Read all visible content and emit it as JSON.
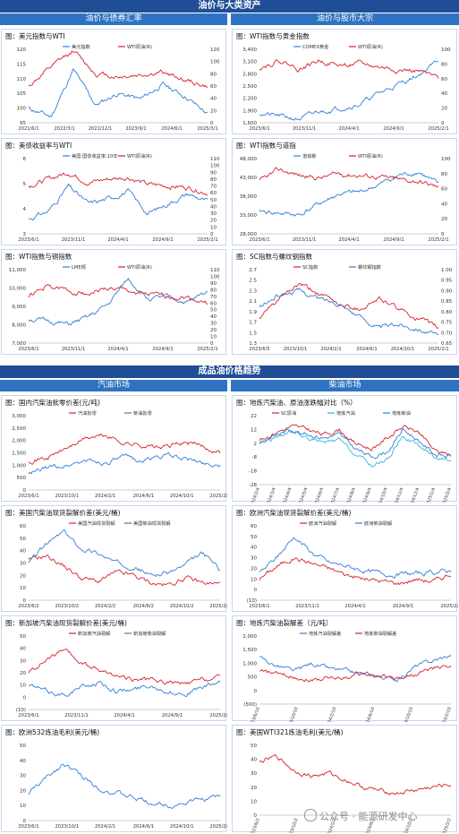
{
  "sections": [
    {
      "title": "油价与大类资产",
      "left": "油价与债券汇率",
      "right": "油价与股市大宗"
    },
    {
      "title": "成品油价格趋势",
      "left": "汽油市场",
      "right": "柴油市场"
    }
  ],
  "watermark": "公众号 · 能源研发中心",
  "colors": {
    "red": "#d6202b",
    "blue": "#2f7fd6",
    "cyan": "#31b7dd",
    "banner": "#1f4e96",
    "subheader": "#2e73c2"
  },
  "panels": [
    {
      "title": "图：美元指数与WTI",
      "legend_pos": "top",
      "series": [
        {
          "name": "美元指数",
          "axis": "left",
          "color": "#2f7fd6",
          "seed": 11,
          "kp": [
            100,
            97,
            113,
            101,
            105,
            103,
            108,
            104,
            98
          ]
        },
        {
          "name": "WTI原油(R)",
          "axis": "right",
          "color": "#d6202b",
          "seed": 12,
          "kp": [
            60,
            90,
            118,
            80,
            75,
            78,
            82,
            70,
            58
          ]
        }
      ],
      "x_ticks": [
        "2021/6/1",
        "2022/3/1",
        "2022/12/1",
        "2023/9/1",
        "2024/6/1",
        "2025/3/1"
      ],
      "yl": [
        95,
        120
      ],
      "yl_ticks": [
        "95",
        "100",
        "105",
        "110",
        "115",
        "120"
      ],
      "yr": [
        0,
        120
      ],
      "yr_ticks": [
        "0",
        "20",
        "40",
        "60",
        "80",
        "100",
        "120"
      ]
    },
    {
      "title": "图：WTI指数与黄金指数",
      "legend_pos": "top",
      "series": [
        {
          "name": "COMEX黄金",
          "axis": "left",
          "color": "#2f7fd6",
          "seed": 21,
          "kp": [
            1850,
            1780,
            1700,
            1900,
            2000,
            2100,
            2400,
            2650,
            2900,
            3300
          ]
        },
        {
          "name": "WTI原油(R)",
          "axis": "right",
          "color": "#d6202b",
          "seed": 22,
          "kp": [
            75,
            85,
            73,
            85,
            78,
            80,
            76,
            72,
            70,
            60
          ]
        }
      ],
      "x_ticks": [
        "2023/6/1",
        "2023/11/1",
        "2024/4/1",
        "2024/9/1",
        "2025/2/1"
      ],
      "yl": [
        1600,
        3600
      ],
      "yl_ticks": [
        "1,600",
        "1,900",
        "2,200",
        "2,500",
        "2,800",
        "3,100",
        "3,400"
      ],
      "yr": [
        0,
        100
      ],
      "yr_ticks": [
        "0",
        "20",
        "40",
        "60",
        "80",
        "100"
      ]
    },
    {
      "title": "图：美债收益率与WTI",
      "legend_pos": "top",
      "series": [
        {
          "name": "美国:国债收益率:10年",
          "axis": "left",
          "color": "#2f7fd6",
          "seed": 31,
          "kp": [
            3.6,
            3.9,
            4.9,
            4.2,
            4.4,
            4.7,
            3.8,
            4.2,
            4.6,
            4.3
          ]
        },
        {
          "name": "WTI原油(R)",
          "axis": "right",
          "color": "#d6202b",
          "seed": 32,
          "kp": [
            70,
            80,
            90,
            75,
            80,
            83,
            72,
            70,
            68,
            60
          ]
        }
      ],
      "x_ticks": [
        "2023/6/1",
        "2023/11/1",
        "2024/4/1",
        "2024/9/1",
        "2025/2/1"
      ],
      "yl": [
        3,
        6
      ],
      "yl_ticks": [
        "3",
        "4",
        "5",
        "6"
      ],
      "yr": [
        0,
        110
      ],
      "yr_ticks": [
        "0",
        "10",
        "20",
        "30",
        "40",
        "50",
        "60",
        "70",
        "80",
        "90",
        "100",
        "110"
      ]
    },
    {
      "title": "图：WTI指数与道指",
      "legend_pos": "top",
      "series": [
        {
          "name": "道琼斯",
          "axis": "left",
          "color": "#2f7fd6",
          "seed": 41,
          "kp": [
            34000,
            33500,
            33000,
            36000,
            38500,
            39000,
            41000,
            43500,
            44500,
            41000
          ]
        },
        {
          "name": "WTI原油(R)",
          "axis": "right",
          "color": "#d6202b",
          "seed": 42,
          "kp": [
            70,
            85,
            78,
            74,
            80,
            78,
            76,
            72,
            70,
            62
          ]
        }
      ],
      "x_ticks": [
        "2023/6/1",
        "2023/11/1",
        "2024/4/1",
        "2024/9/1",
        "2025/2/1"
      ],
      "yl": [
        28000,
        48000
      ],
      "yl_ticks": [
        "28,000",
        "33,000",
        "38,000",
        "43,000",
        "48,000"
      ],
      "yr": [
        0,
        100
      ],
      "yr_ticks": [
        "0",
        "20",
        "40",
        "60",
        "80",
        "100"
      ]
    },
    {
      "title": "图：WTI指数与铜指数",
      "legend_pos": "top",
      "series": [
        {
          "name": "LME铜",
          "axis": "left",
          "color": "#2f7fd6",
          "seed": 51,
          "kp": [
            8300,
            8200,
            8000,
            8400,
            9100,
            10500,
            9400,
            9500,
            9200,
            9800
          ]
        },
        {
          "name": "WTI原油(R)",
          "axis": "right",
          "color": "#d6202b",
          "seed": 52,
          "kp": [
            70,
            85,
            78,
            74,
            82,
            78,
            72,
            70,
            68,
            60
          ]
        }
      ],
      "x_ticks": [
        "2023/6/1",
        "2023/11/1",
        "2024/4/1",
        "2024/9/1",
        "2025/2/1"
      ],
      "yl": [
        7000,
        11000
      ],
      "yl_ticks": [
        "7,000",
        "8,000",
        "9,000",
        "10,000",
        "11,000"
      ],
      "yr": [
        0,
        110
      ],
      "yr_ticks": [
        "0",
        "10",
        "20",
        "30",
        "40",
        "50",
        "60",
        "70",
        "80",
        "90",
        "100",
        "110"
      ]
    },
    {
      "title": "图：SC指数与螺纹钢指数",
      "legend_pos": "top",
      "series": [
        {
          "name": "SC指数",
          "axis": "left",
          "color": "#d6202b",
          "seed": 61,
          "kp": [
            1.8,
            2.2,
            2.5,
            2.3,
            2.1,
            2.0,
            2.2,
            2.0,
            1.8,
            1.6
          ]
        },
        {
          "name": "螺纹钢指数",
          "axis": "right",
          "color": "#2f7fd6",
          "seed": 62,
          "kp": [
            0.82,
            0.88,
            0.9,
            0.86,
            0.84,
            0.78,
            0.72,
            0.74,
            0.72,
            0.68
          ]
        }
      ],
      "x_ticks": [
        "2023/6/5",
        "2023/10/1",
        "2024/2/1",
        "2024/6/1",
        "2024/10/1",
        "2025/2/1"
      ],
      "yl": [
        1.3,
        2.8
      ],
      "yl_ticks": [
        "1.3",
        "1.5",
        "1.7",
        "1.9",
        "2.1",
        "2.3",
        "2.5",
        "2.7"
      ],
      "yr": [
        0.65,
        1.0
      ],
      "yr_ticks": [
        "0.65",
        "0.70",
        "0.75",
        "0.80",
        "0.85",
        "0.90",
        "0.95",
        "1.00"
      ]
    },
    {
      "title": "图：国内汽柴油批零价差(元/吨)",
      "legend_pos": "top",
      "series": [
        {
          "name": "汽油批零",
          "axis": "left",
          "color": "#d6202b",
          "seed": 71,
          "kp": [
            1200,
            1300,
            1700,
            2100,
            2200,
            1900,
            1800,
            1700,
            1900,
            1800,
            1500
          ]
        },
        {
          "name": "柴油批零",
          "axis": "left",
          "color": "#2f7fd6",
          "seed": 72,
          "kp": [
            600,
            900,
            1000,
            1200,
            1100,
            1300,
            1200,
            1400,
            1300,
            1100,
            1000
          ]
        }
      ],
      "x_ticks": [
        "2023/6/1",
        "2023/10/1",
        "2024/2/1",
        "2024/6/1",
        "2024/10/1",
        "2025/2/1"
      ],
      "yl": [
        0,
        3000
      ],
      "yl_ticks": [
        "0",
        "500",
        "1,000",
        "1,500",
        "2,000",
        "2,500",
        "3,000"
      ]
    },
    {
      "title": "图：地炼汽柴油、原油涨跌幅对比（%）",
      "legend_pos": "top",
      "series": [
        {
          "name": "SC原油",
          "axis": "left",
          "color": "#d6202b",
          "seed": 81,
          "kp": [
            4,
            10,
            14,
            12,
            8,
            12,
            2,
            -2,
            6,
            14,
            10,
            -4,
            -6
          ]
        },
        {
          "name": "地炼汽油",
          "axis": "left",
          "color": "#31b7dd",
          "seed": 82,
          "kp": [
            2,
            6,
            10,
            6,
            2,
            4,
            -6,
            -14,
            -10,
            8,
            0,
            -8,
            -10
          ]
        },
        {
          "name": "地炼柴油",
          "axis": "left",
          "color": "#2f7fd6",
          "seed": 83,
          "kp": [
            3,
            8,
            12,
            9,
            6,
            8,
            -2,
            -8,
            -4,
            12,
            4,
            -6,
            -8
          ]
        }
      ],
      "x_ticks": [
        "2024/2/4",
        "2024/3/4",
        "2024/4/4",
        "2024/5/4",
        "2024/6/4",
        "2024/7/4",
        "2024/8/4",
        "2024/9/4",
        "2024/10/4",
        "2024/11/4",
        "2024/12/4",
        "2025/1/4",
        "2025/2/4"
      ],
      "x_rotate": true,
      "yl": [
        -28,
        22
      ],
      "yl_ticks": [
        "-28",
        "-18",
        "-8",
        "2",
        "12",
        "22"
      ]
    },
    {
      "title": "图：美国汽柴油现货裂解价差(美元/桶)",
      "legend_pos": "top",
      "series": [
        {
          "name": "美国汽油现货裂解",
          "axis": "left",
          "color": "#d6202b",
          "seed": 91,
          "kp": [
            32,
            36,
            28,
            18,
            15,
            22,
            20,
            14,
            12,
            18,
            14,
            13
          ]
        },
        {
          "name": "美国柴油现货裂解",
          "axis": "left",
          "color": "#2f7fd6",
          "seed": 92,
          "kp": [
            30,
            45,
            55,
            42,
            38,
            30,
            28,
            20,
            22,
            28,
            38,
            25
          ]
        }
      ],
      "x_ticks": [
        "2023/6/2",
        "2023/10/2",
        "2024/2/2",
        "2024/6/2",
        "2024/10/2",
        "2025/2/2"
      ],
      "yl": [
        0,
        60
      ],
      "yl_ticks": [
        "0",
        "10",
        "20",
        "30",
        "40",
        "50",
        "60"
      ]
    },
    {
      "title": "图：欧洲汽柴油现货裂解价差(美元/桶)",
      "legend_pos": "top",
      "series": [
        {
          "name": "欧洲汽油裂解",
          "axis": "left",
          "color": "#d6202b",
          "seed": 101,
          "kp": [
            10,
            22,
            30,
            25,
            20,
            14,
            10,
            8,
            6,
            10,
            8,
            15
          ]
        },
        {
          "name": "欧洲柴油裂解",
          "axis": "left",
          "color": "#2f7fd6",
          "seed": 102,
          "kp": [
            15,
            30,
            50,
            35,
            25,
            22,
            18,
            15,
            14,
            15,
            16,
            18
          ]
        }
      ],
      "x_ticks": [
        "2023/6/1",
        "2023/11/1",
        "2024/4/1",
        "2024/9/1",
        "2025/2/1"
      ],
      "yl": [
        -10,
        60
      ],
      "yl_ticks": [
        "(10)",
        "0",
        "10",
        "20",
        "30",
        "40",
        "50",
        "60"
      ]
    },
    {
      "title": "图：新加坡汽柴油现货裂解价差(美元/桶)",
      "legend_pos": "top",
      "series": [
        {
          "name": "新加坡汽油裂解",
          "axis": "left",
          "color": "#d6202b",
          "seed": 111,
          "kp": [
            20,
            30,
            38,
            28,
            22,
            18,
            15,
            14,
            12,
            10,
            14,
            16
          ]
        },
        {
          "name": "新加坡柴油裂解",
          "axis": "left",
          "color": "#2f7fd6",
          "seed": 112,
          "kp": [
            10,
            5,
            2,
            8,
            12,
            5,
            6,
            10,
            5,
            3,
            8,
            12
          ]
        }
      ],
      "x_ticks": [
        "2023/6/1",
        "2023/11/1",
        "2024/4/1",
        "2024/9/1",
        "2025/2/1"
      ],
      "yl": [
        -10,
        50
      ],
      "yl_ticks": [
        "(10)",
        "0",
        "10",
        "20",
        "30",
        "40",
        "50"
      ]
    },
    {
      "title": "图：地炼汽柴油裂解差（元/吨）",
      "legend_pos": "top",
      "series": [
        {
          "name": "地炼汽油裂解差",
          "axis": "left",
          "color": "#2f7fd6",
          "seed": 121,
          "kp": [
            1200,
            900,
            700,
            1000,
            800,
            700,
            600,
            500,
            400,
            900,
            1100,
            1300
          ]
        },
        {
          "name": "地炼柴油裂解差",
          "axis": "left",
          "color": "#d6202b",
          "seed": 122,
          "kp": [
            700,
            600,
            500,
            400,
            450,
            500,
            600,
            500,
            450,
            600,
            800,
            900
          ]
        }
      ],
      "x_ticks": [
        "2023/6/10",
        "2023/10/10",
        "2024/2/10",
        "2024/6/10",
        "2024/10/10",
        "2025/2/10"
      ],
      "x_rotate": true,
      "yl": [
        -500,
        2000
      ],
      "yl_ticks": [
        "(500)",
        "0",
        "500",
        "1,000",
        "1,500",
        "2,000"
      ]
    },
    {
      "title": "图：欧洲532炼油毛利(美元/桶)",
      "legend_pos": "none",
      "series": [
        {
          "name": "",
          "axis": "left",
          "color": "#2f7fd6",
          "seed": 131,
          "kp": [
            18,
            28,
            38,
            30,
            22,
            18,
            15,
            12,
            10,
            12,
            14,
            16
          ]
        }
      ],
      "x_ticks": [
        "2023/6/1",
        "2023/10/1",
        "2024/2/1",
        "2024/6/1",
        "2024/10/1",
        "2025/2/1"
      ],
      "yl": [
        0,
        50
      ],
      "yl_ticks": [
        "0",
        "10",
        "20",
        "30",
        "40",
        "50"
      ]
    },
    {
      "title": "图：美国WTI321炼油毛利(美元/桶)",
      "legend_pos": "none",
      "series": [
        {
          "name": "",
          "axis": "left",
          "color": "#d6202b",
          "seed": 141,
          "kp": [
            38,
            42,
            32,
            28,
            30,
            25,
            20,
            17,
            16,
            18,
            20,
            22
          ]
        }
      ],
      "x_ticks": [
        "2023/6/2",
        "2023/10/2",
        "2024/2/2",
        "2024/6/2",
        "2024/10/2",
        "2025/2/2"
      ],
      "x_rotate": true,
      "yl": [
        0,
        50
      ],
      "yl_ticks": [
        "0",
        "10",
        "20",
        "30",
        "40",
        "50"
      ]
    }
  ],
  "chart_data": [
    {
      "type": "line",
      "title": "图：美元指数与WTI"
    },
    {
      "type": "line",
      "title": "图：WTI指数与黄金指数"
    },
    {
      "type": "line",
      "title": "图：美债收益率与WTI"
    },
    {
      "type": "line",
      "title": "图：WTI指数与道指"
    },
    {
      "type": "line",
      "title": "图：WTI指数与铜指数"
    },
    {
      "type": "line",
      "title": "图：SC指数与螺纹钢指数"
    },
    {
      "type": "line",
      "title": "图：国内汽柴油批零价差(元/吨)"
    },
    {
      "type": "line",
      "title": "图：地炼汽柴油、原油涨跌幅对比（%）"
    },
    {
      "type": "line",
      "title": "图：美国汽柴油现货裂解价差(美元/桶)"
    },
    {
      "type": "line",
      "title": "图：欧洲汽柴油现货裂解价差(美元/桶)"
    },
    {
      "type": "line",
      "title": "图：新加坡汽柴油现货裂解价差(美元/桶)"
    },
    {
      "type": "line",
      "title": "图：地炼汽柴油裂解差（元/吨）"
    },
    {
      "type": "line",
      "title": "图：欧洲532炼油毛利(美元/桶)"
    },
    {
      "type": "line",
      "title": "图：美国WTI321炼油毛利(美元/桶)"
    }
  ]
}
